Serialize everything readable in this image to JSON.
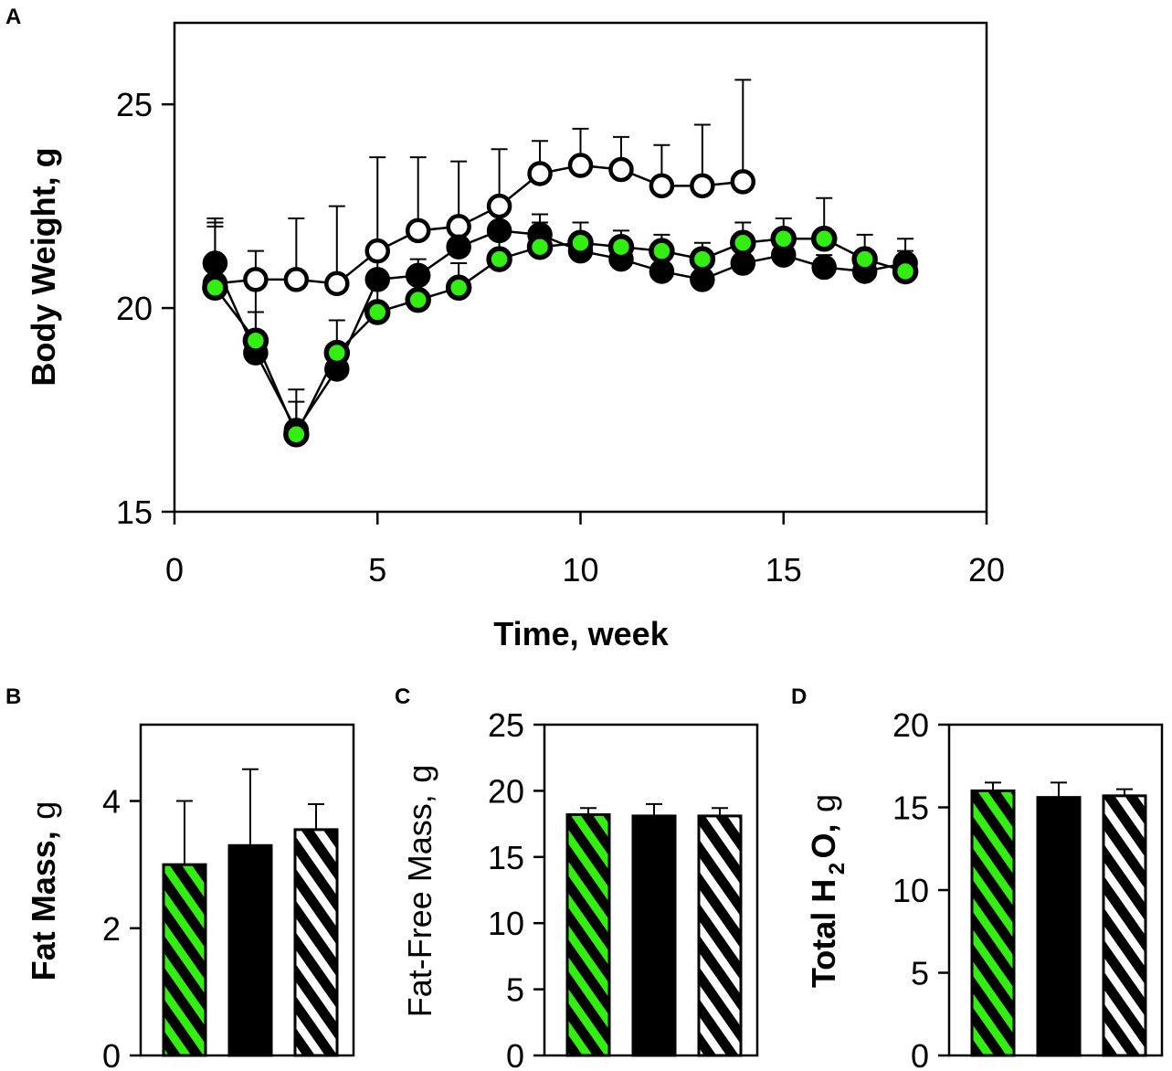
{
  "colors": {
    "green": "#33ee11",
    "black": "#000000",
    "white": "#ffffff"
  },
  "panels": {
    "A": {
      "label": "A"
    },
    "B": {
      "label": "B"
    },
    "C": {
      "label": "C"
    },
    "D": {
      "label": "D"
    }
  },
  "chart_data": [
    {
      "id": "A",
      "type": "line",
      "title": "",
      "xlabel": "Time, week",
      "ylabel": "Body Weight, g",
      "xlim": [
        0,
        20
      ],
      "ylim": [
        15,
        27
      ],
      "xticks": [
        0,
        5,
        10,
        15,
        20
      ],
      "yticks": [
        15,
        20,
        25
      ],
      "grid": false,
      "legend": "none",
      "series": [
        {
          "name": "open-circle",
          "marker": "open",
          "x": [
            1,
            2,
            3,
            4,
            5,
            6,
            7,
            8,
            9,
            10,
            11,
            12,
            13,
            14
          ],
          "values": [
            20.6,
            20.7,
            20.7,
            20.6,
            21.4,
            21.9,
            22.0,
            22.5,
            23.3,
            23.5,
            23.4,
            23.0,
            23.0,
            23.1
          ],
          "errors": [
            1.5,
            0.7,
            1.5,
            1.9,
            2.3,
            1.8,
            1.6,
            1.4,
            0.8,
            0.9,
            0.8,
            1.0,
            1.5,
            2.5
          ]
        },
        {
          "name": "black-filled",
          "marker": "black",
          "x": [
            1,
            2,
            3,
            4,
            5,
            6,
            7,
            8,
            9,
            10,
            11,
            12,
            13,
            14,
            15,
            16,
            17,
            18
          ],
          "values": [
            21.1,
            18.9,
            17.0,
            18.5,
            20.7,
            20.8,
            21.5,
            21.9,
            21.8,
            21.4,
            21.2,
            20.9,
            20.7,
            21.1,
            21.3,
            21.0,
            20.9,
            21.1
          ],
          "errors": [
            1.1,
            1.0,
            1.0,
            0.5,
            0.5,
            0.4,
            0.4,
            0.5,
            0.5,
            0.4,
            0.3,
            0.3,
            0.3,
            0.3,
            0.3,
            0.3,
            0.3,
            0.3
          ]
        },
        {
          "name": "green-filled",
          "marker": "green",
          "x": [
            1,
            2,
            3,
            4,
            5,
            6,
            7,
            8,
            9,
            10,
            11,
            12,
            13,
            14,
            15,
            16,
            17,
            18
          ],
          "values": [
            20.5,
            19.2,
            16.9,
            18.9,
            19.9,
            20.2,
            20.5,
            21.2,
            21.5,
            21.6,
            21.5,
            21.4,
            21.2,
            21.6,
            21.7,
            21.7,
            21.2,
            20.9
          ],
          "errors": [
            1.5,
            1.3,
            0.8,
            0.8,
            0.8,
            0.5,
            0.6,
            0.7,
            0.6,
            0.5,
            0.4,
            0.4,
            0.4,
            0.5,
            0.5,
            1.0,
            0.6,
            0.8
          ]
        }
      ]
    },
    {
      "id": "B",
      "type": "bar",
      "title": "",
      "xlabel": "",
      "ylabel": "Fat Mass,",
      "ylabel_unit": "g",
      "ylim": [
        0,
        5.2
      ],
      "yticks": [
        0,
        2,
        4
      ],
      "categories": [
        "green-striped",
        "black",
        "white-striped"
      ],
      "values": [
        3.0,
        3.3,
        3.55
      ],
      "errors": [
        1.0,
        1.2,
        0.4
      ],
      "patterns": [
        "green-stripe",
        "solid-black",
        "white-stripe"
      ]
    },
    {
      "id": "C",
      "type": "bar",
      "title": "",
      "xlabel": "",
      "ylabel": "Fat-Free Mass,",
      "ylabel_unit": "g",
      "ylim": [
        0,
        25
      ],
      "yticks": [
        0,
        5,
        10,
        15,
        20,
        25
      ],
      "categories": [
        "green-striped",
        "black",
        "white-striped"
      ],
      "values": [
        18.2,
        18.1,
        18.1
      ],
      "errors": [
        0.5,
        0.9,
        0.6
      ],
      "patterns": [
        "green-stripe",
        "solid-black",
        "white-stripe"
      ]
    },
    {
      "id": "D",
      "type": "bar",
      "title": "",
      "xlabel": "",
      "ylabel": "Total H",
      "ylabel_sub": "2",
      "ylabel_rest": "O,",
      "ylabel_unit": "g",
      "ylim": [
        0,
        20
      ],
      "yticks": [
        0,
        5,
        10,
        15,
        20
      ],
      "categories": [
        "green-striped",
        "black",
        "white-striped"
      ],
      "values": [
        16.0,
        15.6,
        15.7
      ],
      "errors": [
        0.5,
        0.9,
        0.4
      ],
      "patterns": [
        "green-stripe",
        "solid-black",
        "white-stripe"
      ]
    }
  ]
}
